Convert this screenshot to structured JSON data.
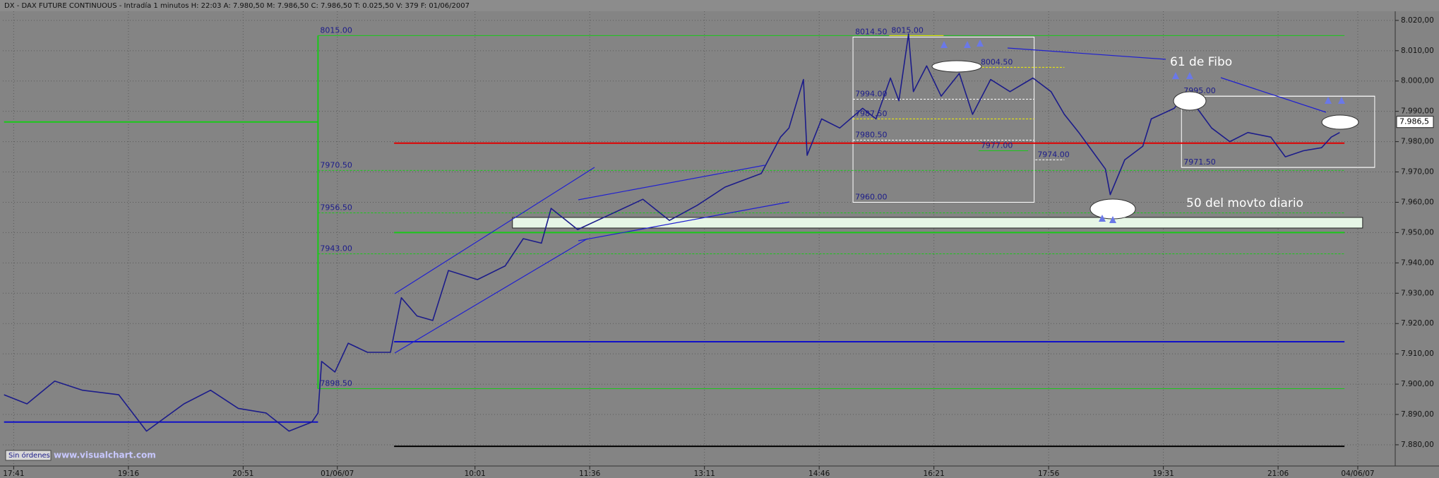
{
  "chart_data": {
    "type": "line",
    "title": "DX - DAX FUTURE CONTINUOUS - Intradía 1 minutos  H: 22:03  A: 7.980,50  M: 7.986,50  C: 7.986,50  T: 0.025,50  V: 379  F: 01/06/2007",
    "series": [
      {
        "color": "#1c1c8a",
        "x": [
          -8,
          11,
          34,
          57,
          87,
          110,
          141,
          163,
          186,
          209,
          228,
          247,
          252,
          255,
          266,
          277,
          293,
          312,
          321,
          334,
          347,
          360,
          384,
          407,
          422,
          437,
          445,
          467,
          494,
          521,
          543,
          566,
          589,
          619,
          635,
          642,
          654,
          657,
          669,
          684,
          703,
          714,
          726,
          733,
          741,
          745,
          756,
          768,
          783,
          794,
          809,
          825,
          844,
          859,
          870,
          882,
          893,
          904,
          908,
          920,
          935,
          942,
          961,
          971,
          980,
          992,
          1007,
          1022,
          1041,
          1053,
          1068,
          1083,
          1091,
          1098
        ],
        "values": [
          7896.5,
          7893.5,
          7901,
          7898,
          7896.5,
          7884.5,
          7893.5,
          7898,
          7892,
          7890.5,
          7884.5,
          7887.5,
          7890.5,
          7907.5,
          7904,
          7913.5,
          7910.5,
          7910.5,
          7928.5,
          7922.5,
          7921,
          7937.5,
          7934.5,
          7939,
          7948,
          7946.5,
          7958,
          7951,
          7956,
          7961,
          7954,
          7959,
          7965,
          7969.5,
          7981.5,
          7984.5,
          8000.5,
          7975.5,
          7987.5,
          7984.5,
          7991,
          7987.5,
          8001,
          7993.5,
          8015.5,
          7996.5,
          8005,
          7995,
          8002.5,
          7989,
          8000.5,
          7996.5,
          8001,
          7996.5,
          7989,
          7983,
          7977,
          7971,
          7962.5,
          7974,
          7978.5,
          7987.5,
          7991,
          7996,
          7991,
          7984.5,
          7980,
          7983,
          7981.5,
          7975,
          7977,
          7978,
          7981.5,
          7983
        ]
      }
    ],
    "xlim": [
      -9,
      1144
    ],
    "xticks": [
      {
        "value": 0,
        "label": "17:41"
      },
      {
        "value": 95,
        "label": "19:16"
      },
      {
        "value": 190,
        "label": "20:51"
      },
      {
        "value": 268,
        "label": "01/06/07"
      },
      {
        "value": 382,
        "label": "10:01"
      },
      {
        "value": 477,
        "label": "11:36"
      },
      {
        "value": 572,
        "label": "13:11"
      },
      {
        "value": 667,
        "label": "14:46"
      },
      {
        "value": 762,
        "label": "16:21"
      },
      {
        "value": 857,
        "label": "17:56"
      },
      {
        "value": 952,
        "label": "19:31"
      },
      {
        "value": 1047,
        "label": "21:06"
      },
      {
        "value": 1113,
        "label": "04/06/07"
      }
    ],
    "ylim": [
      7873,
      8023
    ],
    "yticks": [
      {
        "value": 8020,
        "label": "8.020,00"
      },
      {
        "value": 8010,
        "label": "8.010,00"
      },
      {
        "value": 8000,
        "label": "8.000,00"
      },
      {
        "value": 7990,
        "label": "7.990,00"
      },
      {
        "value": 7980,
        "label": "7.980,00"
      },
      {
        "value": 7970,
        "label": "7.970,00"
      },
      {
        "value": 7960,
        "label": "7.960,00"
      },
      {
        "value": 7950,
        "label": "7.950,00"
      },
      {
        "value": 7940,
        "label": "7.940,00"
      },
      {
        "value": 7930,
        "label": "7.930,00"
      },
      {
        "value": 7920,
        "label": "7.920,00"
      },
      {
        "value": 7910,
        "label": "7.910,00"
      },
      {
        "value": 7900,
        "label": "7.900,00"
      },
      {
        "value": 7890,
        "label": "7.890,00"
      },
      {
        "value": 7880,
        "label": "7.880,00"
      }
    ],
    "grid": true,
    "last_value": {
      "value": 7986.5,
      "label": "7.986,5"
    },
    "levels": [
      {
        "value": 8015,
        "label": "8015.00",
        "x": 252,
        "to": 1102,
        "color": "#19c819",
        "dash": false
      },
      {
        "value": 7970.5,
        "label": "7970.50",
        "x": 252,
        "to": 1102,
        "color": "#19c819",
        "dash": true
      },
      {
        "value": 7956.5,
        "label": "7956.50",
        "x": 252,
        "to": 1102,
        "color": "#19c819",
        "dash": true
      },
      {
        "value": 7943,
        "label": "7943.00",
        "x": 252,
        "to": 1102,
        "color": "#19c819",
        "dash": true
      },
      {
        "value": 7898.5,
        "label": "7898.50",
        "x": 252,
        "to": 1102,
        "color": "#19c819",
        "dash": false
      },
      {
        "value": 8014.5,
        "label": "8014.50",
        "x": 695,
        "to": 845,
        "color": "#ffffff",
        "dash": false
      },
      {
        "value": 7960,
        "label": "7960.00",
        "x": 695,
        "to": 845,
        "color": "#ffffff",
        "dash": false
      },
      {
        "value": 8015,
        "label": "8015.00",
        "x": 725,
        "to": 770,
        "color": "#f0f000",
        "dash": false
      },
      {
        "value": 8004.5,
        "label": "8004.50",
        "x": 799,
        "to": 870,
        "color": "#f0f000",
        "dash": true
      },
      {
        "value": 7994,
        "label": "7994.00",
        "x": 695,
        "to": 845,
        "color": "#ffffff",
        "dash": true
      },
      {
        "value": 7987.5,
        "label": "7987.50",
        "x": 695,
        "to": 845,
        "color": "#f0f000",
        "dash": true
      },
      {
        "value": 7980.5,
        "label": "7980.50",
        "x": 695,
        "to": 845,
        "color": "#ffffff",
        "dash": true
      },
      {
        "value": 7977,
        "label": "7977.00",
        "x": 799,
        "to": 840,
        "color": "#19c819",
        "dash": false
      },
      {
        "value": 7974,
        "label": "7974.00",
        "x": 846,
        "to": 870,
        "color": "#ffffff",
        "dash": true
      },
      {
        "value": 7995,
        "label": "7995.00",
        "x": 967,
        "to": 1127,
        "color": "#ffffff",
        "dash": false
      },
      {
        "value": 7971.5,
        "label": "7971.50",
        "x": 967,
        "to": 1127,
        "color": "#ffffff",
        "dash": false
      }
    ],
    "lines": [
      {
        "value": 7979.5,
        "from": 315,
        "to": 1102,
        "color": "#e00000"
      },
      {
        "value": 7950,
        "from": 315,
        "to": 1102,
        "color": "#19c819"
      },
      {
        "value": 7914,
        "from": 315,
        "to": 1102,
        "color": "#1010c8"
      },
      {
        "value": 7879.5,
        "from": 315,
        "to": 1102,
        "color": "#000000"
      },
      {
        "value": 7986.5,
        "from": -8,
        "to": 252,
        "color": "#19c819"
      },
      {
        "value": 7887.5,
        "from": -8,
        "to": 252,
        "color": "#1010c8"
      }
    ],
    "boxes": [
      {
        "x": [
          695,
          845
        ],
        "range": [
          7960,
          8014.5
        ],
        "color": "#ffffff"
      },
      {
        "x": [
          967,
          1127
        ],
        "range": [
          7971.5,
          7995
        ],
        "color": "#ffffff"
      }
    ],
    "zone": {
      "x": [
        413,
        1117
      ],
      "range": [
        7951.5,
        7955
      ],
      "color": "#e6f6e6"
    },
    "annotations": [
      "61 de Fibo",
      "50 del movto diario"
    ],
    "footer": [
      "Sin órdenes",
      "www.visualchart.com"
    ]
  }
}
